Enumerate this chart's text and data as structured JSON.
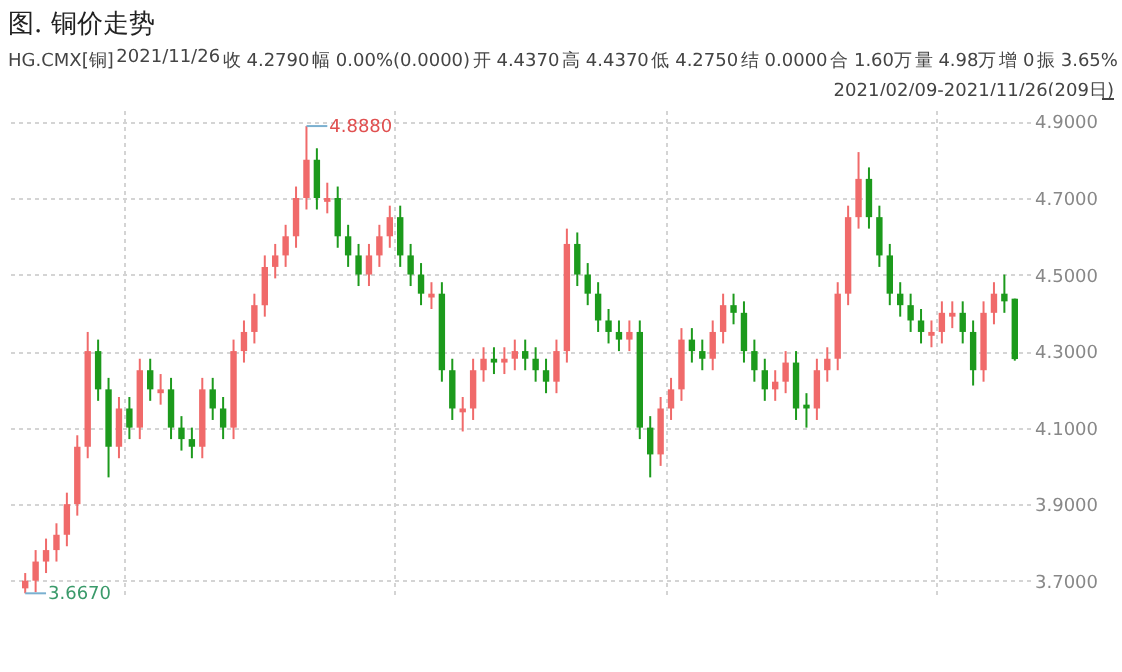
{
  "chart_data": {
    "type": "candlestick",
    "title": "图. 铜价走势",
    "annotations": [
      "HG.CMX[铜]",
      "2021/11/26",
      "收 4.2790",
      "幅 0.00%(0.0000)",
      "开 4.4370",
      "高 4.4370",
      "低 4.2750",
      "结 0.0000",
      "合 1.60万",
      "量 4.98万",
      "增 0",
      "振 3.65%",
      "2021/02/09-2021/11/26(209日)",
      "4.8880",
      "3.6670"
    ],
    "categories": [
      null,
      null,
      null,
      null,
      null,
      null,
      null,
      null,
      null,
      null,
      null,
      null,
      null,
      null,
      null,
      null,
      null,
      null,
      null,
      null,
      null,
      null,
      null,
      null,
      null,
      null,
      null,
      null,
      null,
      null,
      null,
      null,
      null,
      null,
      null,
      null,
      null,
      null,
      null,
      null,
      null,
      null,
      null,
      null,
      null,
      null,
      null,
      null,
      null,
      null,
      null,
      null,
      null,
      null,
      null,
      null,
      null,
      null,
      null,
      null,
      null,
      null,
      null,
      null,
      null,
      null,
      null,
      null,
      null,
      null,
      null,
      null,
      null,
      null,
      null,
      null,
      null,
      null,
      null,
      null,
      null,
      null,
      null,
      null,
      null,
      null,
      null,
      null,
      null,
      null,
      null,
      null,
      null,
      null,
      null,
      null
    ],
    "ohlc": [
      [
        3.68,
        3.72,
        3.667,
        3.7
      ],
      [
        3.7,
        3.78,
        3.67,
        3.75
      ],
      [
        3.75,
        3.81,
        3.72,
        3.78
      ],
      [
        3.78,
        3.85,
        3.75,
        3.82
      ],
      [
        3.82,
        3.93,
        3.79,
        3.9
      ],
      [
        3.9,
        4.08,
        3.87,
        4.05
      ],
      [
        4.05,
        4.35,
        4.02,
        4.3
      ],
      [
        4.3,
        4.33,
        4.17,
        4.2
      ],
      [
        4.2,
        4.23,
        3.97,
        4.05
      ],
      [
        4.05,
        4.18,
        4.02,
        4.15
      ],
      [
        4.15,
        4.18,
        4.07,
        4.1
      ],
      [
        4.1,
        4.28,
        4.07,
        4.25
      ],
      [
        4.25,
        4.28,
        4.17,
        4.2
      ],
      [
        4.19,
        4.24,
        4.16,
        4.2
      ],
      [
        4.2,
        4.23,
        4.07,
        4.1
      ],
      [
        4.1,
        4.13,
        4.04,
        4.07
      ],
      [
        4.07,
        4.1,
        4.02,
        4.05
      ],
      [
        4.05,
        4.23,
        4.02,
        4.2
      ],
      [
        4.2,
        4.23,
        4.12,
        4.15
      ],
      [
        4.15,
        4.18,
        4.07,
        4.1
      ],
      [
        4.1,
        4.33,
        4.07,
        4.3
      ],
      [
        4.3,
        4.38,
        4.27,
        4.35
      ],
      [
        4.35,
        4.45,
        4.32,
        4.42
      ],
      [
        4.42,
        4.55,
        4.39,
        4.52
      ],
      [
        4.52,
        4.58,
        4.49,
        4.55
      ],
      [
        4.55,
        4.63,
        4.52,
        4.6
      ],
      [
        4.6,
        4.73,
        4.57,
        4.7
      ],
      [
        4.7,
        4.888,
        4.67,
        4.8
      ],
      [
        4.8,
        4.83,
        4.67,
        4.7
      ],
      [
        4.69,
        4.74,
        4.66,
        4.7
      ],
      [
        4.7,
        4.73,
        4.57,
        4.6
      ],
      [
        4.6,
        4.63,
        4.52,
        4.55
      ],
      [
        4.55,
        4.58,
        4.47,
        4.5
      ],
      [
        4.5,
        4.58,
        4.47,
        4.55
      ],
      [
        4.55,
        4.63,
        4.52,
        4.6
      ],
      [
        4.6,
        4.68,
        4.57,
        4.65
      ],
      [
        4.65,
        4.68,
        4.52,
        4.55
      ],
      [
        4.55,
        4.58,
        4.47,
        4.5
      ],
      [
        4.5,
        4.53,
        4.42,
        4.45
      ],
      [
        4.44,
        4.48,
        4.41,
        4.45
      ],
      [
        4.45,
        4.48,
        4.22,
        4.25
      ],
      [
        4.25,
        4.28,
        4.12,
        4.15
      ],
      [
        4.14,
        4.18,
        4.09,
        4.15
      ],
      [
        4.15,
        4.28,
        4.12,
        4.25
      ],
      [
        4.25,
        4.31,
        4.22,
        4.28
      ],
      [
        4.28,
        4.31,
        4.24,
        4.27
      ],
      [
        4.27,
        4.31,
        4.24,
        4.28
      ],
      [
        4.28,
        4.33,
        4.25,
        4.3
      ],
      [
        4.3,
        4.33,
        4.25,
        4.28
      ],
      [
        4.28,
        4.31,
        4.22,
        4.25
      ],
      [
        4.25,
        4.28,
        4.19,
        4.22
      ],
      [
        4.22,
        4.33,
        4.19,
        4.3
      ],
      [
        4.3,
        4.62,
        4.27,
        4.58
      ],
      [
        4.58,
        4.61,
        4.47,
        4.5
      ],
      [
        4.5,
        4.53,
        4.42,
        4.45
      ],
      [
        4.45,
        4.48,
        4.35,
        4.38
      ],
      [
        4.38,
        4.41,
        4.32,
        4.35
      ],
      [
        4.35,
        4.38,
        4.3,
        4.33
      ],
      [
        4.33,
        4.38,
        4.3,
        4.35
      ],
      [
        4.35,
        4.38,
        4.07,
        4.1
      ],
      [
        4.1,
        4.13,
        3.97,
        4.03
      ],
      [
        4.03,
        4.18,
        4.0,
        4.15
      ],
      [
        4.15,
        4.23,
        4.12,
        4.2
      ],
      [
        4.2,
        4.36,
        4.17,
        4.33
      ],
      [
        4.33,
        4.36,
        4.27,
        4.3
      ],
      [
        4.3,
        4.33,
        4.25,
        4.28
      ],
      [
        4.28,
        4.38,
        4.25,
        4.35
      ],
      [
        4.35,
        4.45,
        4.32,
        4.42
      ],
      [
        4.42,
        4.45,
        4.37,
        4.4
      ],
      [
        4.4,
        4.43,
        4.27,
        4.3
      ],
      [
        4.3,
        4.33,
        4.22,
        4.25
      ],
      [
        4.25,
        4.28,
        4.17,
        4.2
      ],
      [
        4.2,
        4.25,
        4.17,
        4.22
      ],
      [
        4.22,
        4.3,
        4.19,
        4.27
      ],
      [
        4.27,
        4.3,
        4.12,
        4.15
      ],
      [
        4.16,
        4.19,
        4.1,
        4.15
      ],
      [
        4.15,
        4.28,
        4.12,
        4.25
      ],
      [
        4.25,
        4.31,
        4.22,
        4.28
      ],
      [
        4.28,
        4.48,
        4.25,
        4.45
      ],
      [
        4.45,
        4.68,
        4.42,
        4.65
      ],
      [
        4.65,
        4.82,
        4.62,
        4.75
      ],
      [
        4.75,
        4.78,
        4.62,
        4.65
      ],
      [
        4.65,
        4.68,
        4.52,
        4.55
      ],
      [
        4.55,
        4.58,
        4.42,
        4.45
      ],
      [
        4.45,
        4.48,
        4.39,
        4.42
      ],
      [
        4.42,
        4.45,
        4.35,
        4.38
      ],
      [
        4.38,
        4.41,
        4.32,
        4.35
      ],
      [
        4.34,
        4.38,
        4.31,
        4.35
      ],
      [
        4.35,
        4.43,
        4.32,
        4.4
      ],
      [
        4.39,
        4.43,
        4.36,
        4.4
      ],
      [
        4.4,
        4.43,
        4.32,
        4.35
      ],
      [
        4.35,
        4.38,
        4.21,
        4.25
      ],
      [
        4.25,
        4.43,
        4.22,
        4.4
      ],
      [
        4.4,
        4.48,
        4.37,
        4.45
      ],
      [
        4.45,
        4.5,
        4.4,
        4.43
      ],
      [
        4.437,
        4.437,
        4.275,
        4.279
      ]
    ],
    "ylim": [
      3.66,
      4.93
    ],
    "yticks": [
      {
        "value": 3.7,
        "label": "3.7000"
      },
      {
        "value": 3.9,
        "label": "3.9000"
      },
      {
        "value": 4.1,
        "label": "4.1000"
      },
      {
        "value": 4.3,
        "label": "4.3000"
      },
      {
        "value": 4.5,
        "label": "4.5000"
      },
      {
        "value": 4.7,
        "label": "4.7000"
      },
      {
        "value": 4.9,
        "label": "4.9000"
      }
    ],
    "grid": true
  }
}
